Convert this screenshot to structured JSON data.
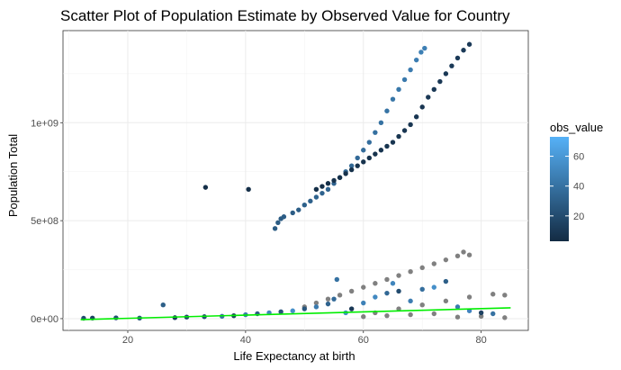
{
  "chart_data": {
    "type": "scatter",
    "title": "Scatter Plot of Population Estimate by Observed Value for Country",
    "xlabel": "Life Expectancy at birth",
    "ylabel": "Population Total",
    "xlim": [
      9,
      88
    ],
    "ylim": [
      -60000000,
      1470000000
    ],
    "x_ticks": [
      20,
      40,
      60,
      80
    ],
    "x_tick_labels": [
      "20",
      "40",
      "60",
      "80"
    ],
    "y_ticks": [
      0,
      500000000,
      1000000000
    ],
    "y_tick_labels": [
      "0e+00",
      "5e+08",
      "1e+09"
    ],
    "grid": true,
    "legend": {
      "title": "obs_value",
      "position": "right",
      "type": "colorbar",
      "range": [
        3,
        73
      ],
      "ticks": [
        20,
        40,
        60
      ],
      "tick_labels": [
        "20",
        "40",
        "60"
      ],
      "low_color": "#132b43",
      "high_color": "#56b1f7"
    },
    "na_color": "#808080",
    "trend_color": "#00ee00",
    "trend_line": {
      "x": [
        12,
        85
      ],
      "y": [
        -5000000,
        55000000
      ]
    },
    "series": [
      {
        "points": [
          [
            45.0,
            460000000,
            28
          ],
          [
            45.5,
            490000000,
            28
          ],
          [
            46.0,
            510000000,
            28
          ],
          [
            46.5,
            520000000,
            29
          ],
          [
            48.0,
            540000000,
            29
          ],
          [
            49.0,
            555000000,
            30
          ],
          [
            50.0,
            580000000,
            31
          ],
          [
            51.0,
            600000000,
            31
          ],
          [
            52.0,
            620000000,
            32
          ],
          [
            53.0,
            640000000,
            32
          ],
          [
            54.0,
            660000000,
            33
          ],
          [
            55.0,
            690000000,
            33
          ],
          [
            56.0,
            720000000,
            34
          ],
          [
            57.0,
            750000000,
            35
          ],
          [
            58.0,
            780000000,
            35
          ],
          [
            59.0,
            820000000,
            36
          ],
          [
            60.0,
            860000000,
            37
          ],
          [
            61.0,
            900000000,
            38
          ],
          [
            62.0,
            950000000,
            39
          ],
          [
            63.0,
            1000000000,
            40
          ],
          [
            64.0,
            1060000000,
            41
          ],
          [
            65.0,
            1120000000,
            42
          ],
          [
            66.0,
            1170000000,
            43
          ],
          [
            67.0,
            1220000000,
            44
          ],
          [
            68.0,
            1270000000,
            45
          ],
          [
            69.0,
            1320000000,
            46
          ],
          [
            69.8,
            1360000000,
            47
          ],
          [
            70.4,
            1380000000,
            47
          ]
        ]
      },
      {
        "points": [
          [
            33.2,
            670000000,
            5
          ],
          [
            40.5,
            660000000,
            5
          ],
          [
            52.0,
            660000000,
            5
          ],
          [
            53.0,
            675000000,
            5
          ],
          [
            54.0,
            690000000,
            5
          ],
          [
            55.0,
            705000000,
            6
          ],
          [
            56.0,
            720000000,
            6
          ],
          [
            57.0,
            740000000,
            6
          ],
          [
            58.0,
            760000000,
            6
          ],
          [
            59.0,
            780000000,
            7
          ],
          [
            60.0,
            800000000,
            7
          ],
          [
            61.0,
            820000000,
            7
          ],
          [
            62.0,
            840000000,
            7
          ],
          [
            63.0,
            860000000,
            8
          ],
          [
            64.0,
            880000000,
            8
          ],
          [
            65.0,
            900000000,
            8
          ],
          [
            66.0,
            930000000,
            8
          ],
          [
            67.0,
            960000000,
            9
          ],
          [
            68.0,
            990000000,
            9
          ],
          [
            69.0,
            1030000000,
            9
          ],
          [
            70.0,
            1080000000,
            9
          ],
          [
            71.0,
            1130000000,
            10
          ],
          [
            72.0,
            1170000000,
            10
          ],
          [
            73.0,
            1210000000,
            10
          ],
          [
            74.0,
            1250000000,
            10
          ],
          [
            75.0,
            1290000000,
            11
          ],
          [
            76.0,
            1330000000,
            11
          ],
          [
            77.0,
            1370000000,
            11
          ],
          [
            78.0,
            1400000000,
            11
          ]
        ]
      },
      {
        "points": [
          [
            12.5,
            2000000,
            20
          ],
          [
            14.0,
            3000000,
            15
          ],
          [
            18.0,
            4000000,
            22
          ],
          [
            22.0,
            3000000,
            25
          ],
          [
            26.0,
            70000000,
            30
          ],
          [
            28.0,
            5000000,
            12
          ],
          [
            30.0,
            8000000,
            18
          ],
          [
            33.0,
            10000000,
            22
          ],
          [
            36.0,
            12000000,
            40
          ],
          [
            38.0,
            15000000,
            14
          ],
          [
            40.0,
            20000000,
            45
          ],
          [
            42.0,
            25000000,
            28
          ],
          [
            44.0,
            30000000,
            50
          ],
          [
            46.0,
            35000000,
            24
          ],
          [
            48.0,
            40000000,
            55
          ],
          [
            50.0,
            50000000,
            26
          ],
          [
            52.0,
            60000000,
            45
          ],
          [
            54.0,
            75000000,
            32
          ],
          [
            55.0,
            100000000,
            36
          ],
          [
            55.5,
            200000000,
            40
          ],
          [
            57.0,
            30000000,
            55
          ],
          [
            58.0,
            50000000,
            10
          ],
          [
            60.0,
            80000000,
            48
          ],
          [
            62.0,
            110000000,
            52
          ],
          [
            64.0,
            130000000,
            35
          ],
          [
            65.0,
            180000000,
            50
          ],
          [
            66.0,
            140000000,
            20
          ],
          [
            68.0,
            90000000,
            46
          ],
          [
            70.0,
            150000000,
            38
          ],
          [
            72.0,
            160000000,
            55
          ],
          [
            74.0,
            190000000,
            30
          ],
          [
            76.0,
            60000000,
            45
          ],
          [
            78.0,
            40000000,
            50
          ],
          [
            80.0,
            30000000,
            15
          ],
          [
            82.0,
            25000000,
            40
          ]
        ]
      },
      {
        "points": [
          [
            50.0,
            60000000,
            null
          ],
          [
            52.0,
            80000000,
            null
          ],
          [
            54.0,
            100000000,
            null
          ],
          [
            56.0,
            120000000,
            null
          ],
          [
            58.0,
            140000000,
            null
          ],
          [
            60.0,
            160000000,
            null
          ],
          [
            62.0,
            180000000,
            null
          ],
          [
            64.0,
            200000000,
            null
          ],
          [
            66.0,
            220000000,
            null
          ],
          [
            68.0,
            240000000,
            null
          ],
          [
            70.0,
            260000000,
            null
          ],
          [
            72.0,
            280000000,
            null
          ],
          [
            74.0,
            300000000,
            null
          ],
          [
            76.0,
            320000000,
            null
          ],
          [
            77.0,
            340000000,
            null
          ],
          [
            78.0,
            325000000,
            null
          ],
          [
            62.0,
            30000000,
            null
          ],
          [
            66.0,
            50000000,
            null
          ],
          [
            70.0,
            70000000,
            null
          ],
          [
            74.0,
            90000000,
            null
          ],
          [
            78.0,
            110000000,
            null
          ],
          [
            82.0,
            125000000,
            null
          ],
          [
            84.0,
            120000000,
            null
          ],
          [
            60.0,
            10000000,
            null
          ],
          [
            64.0,
            15000000,
            null
          ],
          [
            68.0,
            20000000,
            null
          ],
          [
            72.0,
            25000000,
            null
          ],
          [
            76.0,
            8000000,
            null
          ],
          [
            80.0,
            12000000,
            null
          ],
          [
            84.0,
            5000000,
            null
          ]
        ]
      }
    ]
  }
}
